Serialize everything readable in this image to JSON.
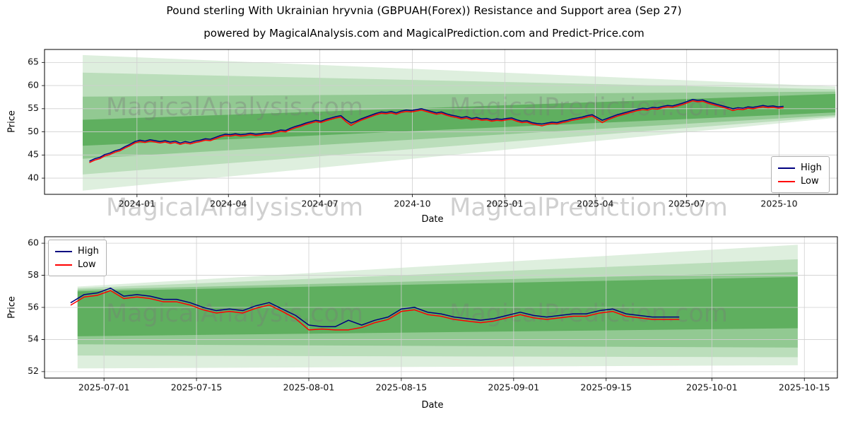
{
  "title": "Pound sterling With Ukrainian hryvnia (GBPUAH(Forex)) Resistance and Support area (Sep 27)",
  "subtitle": "powered by MagicalAnalysis.com and MagicalPrediction.com and Predict-Price.com",
  "watermark": {
    "left": "MagicalAnalysis.com",
    "right": "MagicalPrediction.com",
    "color": "rgba(120,120,120,0.35)"
  },
  "legend": {
    "high_label": "High",
    "low_label": "Low",
    "high_color": "#000080",
    "low_color": "#ff0000"
  },
  "colors": {
    "band_green": "#008000",
    "grid": "#cfcfcf",
    "axis": "#000000"
  },
  "chart_data": [
    {
      "type": "line",
      "title": "Pound sterling With Ukrainian hryvnia (GBPUAH(Forex)) Resistance and Support area (Sep 27)",
      "xlabel": "Date",
      "ylabel": "Price",
      "grid": true,
      "legend_position": "center right",
      "x_range": [
        "2023-10-01",
        "2025-11-28"
      ],
      "ylim": [
        36.5,
        67.8
      ],
      "y_ticks": [
        40,
        45,
        50,
        55,
        60,
        65
      ],
      "x_ticks": [
        {
          "v": "2024-01-01",
          "label": "2024-01"
        },
        {
          "v": "2024-04-01",
          "label": "2024-04"
        },
        {
          "v": "2024-07-01",
          "label": "2024-07"
        },
        {
          "v": "2024-10-01",
          "label": "2024-10"
        },
        {
          "v": "2025-01-01",
          "label": "2025-01"
        },
        {
          "v": "2025-04-01",
          "label": "2025-04"
        },
        {
          "v": "2025-07-01",
          "label": "2025-07"
        },
        {
          "v": "2025-10-01",
          "label": "2025-10"
        }
      ],
      "bands": [
        {
          "color": "#008000",
          "alpha": 0.13,
          "x0": "2023-11-08",
          "x1": "2025-11-26",
          "top0": 66.6,
          "bot0": 37.3,
          "top1": 59.8,
          "bot1": 53.0
        },
        {
          "color": "#008000",
          "alpha": 0.16,
          "x0": "2023-11-08",
          "x1": "2025-11-26",
          "top0": 62.8,
          "bot0": 40.8,
          "top1": 59.2,
          "bot1": 53.3
        },
        {
          "color": "#008000",
          "alpha": 0.22,
          "x0": "2023-11-08",
          "x1": "2025-11-26",
          "top0": 57.6,
          "bot0": 44.2,
          "top1": 58.7,
          "bot1": 53.6
        },
        {
          "color": "#008000",
          "alpha": 0.35,
          "x0": "2023-11-08",
          "x1": "2025-11-26",
          "top0": 52.6,
          "bot0": 47.0,
          "top1": 58.2,
          "bot1": 54.2
        }
      ],
      "x_start": "2023-11-15",
      "x_step_days": 5,
      "series": [
        {
          "name": "High",
          "color": "#000080",
          "values": [
            43.7,
            44.2,
            44.5,
            45.1,
            45.4,
            45.9,
            46.2,
            46.8,
            47.3,
            47.9,
            48.2,
            48.0,
            48.3,
            48.1,
            47.9,
            48.1,
            47.8,
            48.0,
            47.6,
            47.9,
            47.7,
            48.0,
            48.2,
            48.5,
            48.4,
            48.8,
            49.2,
            49.5,
            49.4,
            49.6,
            49.4,
            49.5,
            49.7,
            49.5,
            49.6,
            49.8,
            49.8,
            50.1,
            50.4,
            50.3,
            50.8,
            51.2,
            51.5,
            51.9,
            52.2,
            52.5,
            52.3,
            52.7,
            53.0,
            53.3,
            53.5,
            52.6,
            51.9,
            52.3,
            52.8,
            53.2,
            53.6,
            54.0,
            54.3,
            54.2,
            54.4,
            54.1,
            54.5,
            54.7,
            54.6,
            54.8,
            55.0,
            54.7,
            54.4,
            54.1,
            54.3,
            53.9,
            53.6,
            53.4,
            53.1,
            53.3,
            52.9,
            53.1,
            52.8,
            52.9,
            52.6,
            52.8,
            52.7,
            52.9,
            53.0,
            52.6,
            52.3,
            52.4,
            52.0,
            51.8,
            51.7,
            51.9,
            52.1,
            52.0,
            52.3,
            52.5,
            52.8,
            53.0,
            53.2,
            53.5,
            53.7,
            53.1,
            52.5,
            52.9,
            53.3,
            53.7,
            54.0,
            54.3,
            54.6,
            54.9,
            55.1,
            55.0,
            55.3,
            55.2,
            55.5,
            55.7,
            55.6,
            55.9,
            56.2,
            56.6,
            57.0,
            56.8,
            56.9,
            56.5,
            56.2,
            55.9,
            55.6,
            55.3,
            55.0,
            55.2,
            55.1,
            55.4,
            55.3,
            55.5,
            55.7,
            55.5,
            55.6,
            55.4,
            55.5
          ]
        },
        {
          "name": "Low",
          "color": "#ff0000",
          "values": [
            43.4,
            43.9,
            44.2,
            44.8,
            45.1,
            45.6,
            45.9,
            46.5,
            47.0,
            47.6,
            47.9,
            47.7,
            48.0,
            47.8,
            47.6,
            47.8,
            47.5,
            47.7,
            47.3,
            47.6,
            47.4,
            47.7,
            47.9,
            48.2,
            48.1,
            48.5,
            48.9,
            49.2,
            49.1,
            49.3,
            49.1,
            49.2,
            49.4,
            49.2,
            49.3,
            49.5,
            49.5,
            49.8,
            50.1,
            50.0,
            50.5,
            50.9,
            51.2,
            51.6,
            51.9,
            52.2,
            52.0,
            52.4,
            52.7,
            53.0,
            53.2,
            52.2,
            51.4,
            52.0,
            52.5,
            52.9,
            53.3,
            53.7,
            54.0,
            53.9,
            54.1,
            53.8,
            54.2,
            54.4,
            54.3,
            54.5,
            54.7,
            54.4,
            54.1,
            53.8,
            54.0,
            53.6,
            53.3,
            53.1,
            52.8,
            53.0,
            52.6,
            52.8,
            52.5,
            52.6,
            52.3,
            52.5,
            52.4,
            52.6,
            52.7,
            52.3,
            52.0,
            52.1,
            51.7,
            51.5,
            51.3,
            51.6,
            51.8,
            51.7,
            52.0,
            52.2,
            52.5,
            52.7,
            52.9,
            53.2,
            53.4,
            52.7,
            52.0,
            52.6,
            53.0,
            53.4,
            53.7,
            54.0,
            54.3,
            54.6,
            54.8,
            54.7,
            55.0,
            54.9,
            55.2,
            55.4,
            55.3,
            55.6,
            55.9,
            56.3,
            56.7,
            56.5,
            56.6,
            56.2,
            55.9,
            55.6,
            55.3,
            55.0,
            54.6,
            54.9,
            54.8,
            55.1,
            55.0,
            55.2,
            55.4,
            55.2,
            55.3,
            55.1,
            55.2
          ]
        }
      ]
    },
    {
      "type": "line",
      "xlabel": "Date",
      "ylabel": "Price",
      "grid": true,
      "legend_position": "upper left",
      "x_range": [
        "2025-06-22",
        "2025-10-20"
      ],
      "ylim": [
        51.6,
        60.4
      ],
      "y_ticks": [
        52,
        54,
        56,
        58,
        60
      ],
      "x_ticks": [
        {
          "v": "2025-07-01",
          "label": "2025-07-01"
        },
        {
          "v": "2025-07-15",
          "label": "2025-07-15"
        },
        {
          "v": "2025-08-01",
          "label": "2025-08-01"
        },
        {
          "v": "2025-08-15",
          "label": "2025-08-15"
        },
        {
          "v": "2025-09-01",
          "label": "2025-09-01"
        },
        {
          "v": "2025-09-15",
          "label": "2025-09-15"
        },
        {
          "v": "2025-10-01",
          "label": "2025-10-01"
        },
        {
          "v": "2025-10-15",
          "label": "2025-10-15"
        }
      ],
      "bands": [
        {
          "color": "#008000",
          "alpha": 0.13,
          "x0": "2025-06-27",
          "x1": "2025-10-14",
          "top0": 57.3,
          "bot0": 52.2,
          "top1": 59.9,
          "bot1": 52.4
        },
        {
          "color": "#008000",
          "alpha": 0.16,
          "x0": "2025-06-27",
          "x1": "2025-10-14",
          "top0": 57.2,
          "bot0": 53.0,
          "top1": 59.0,
          "bot1": 52.9
        },
        {
          "color": "#008000",
          "alpha": 0.22,
          "x0": "2025-06-27",
          "x1": "2025-10-14",
          "top0": 57.1,
          "bot0": 53.7,
          "top1": 58.2,
          "bot1": 53.5
        },
        {
          "color": "#008000",
          "alpha": 0.35,
          "x0": "2025-06-27",
          "x1": "2025-10-14",
          "top0": 57.0,
          "bot0": 54.2,
          "top1": 57.9,
          "bot1": 54.7
        }
      ],
      "x_start": "2025-06-26",
      "x_step_days": 2,
      "series": [
        {
          "name": "High",
          "color": "#000080",
          "values": [
            56.3,
            56.8,
            56.9,
            57.2,
            56.7,
            56.8,
            56.7,
            56.5,
            56.5,
            56.3,
            56.0,
            55.8,
            55.9,
            55.8,
            56.1,
            56.3,
            55.9,
            55.5,
            54.9,
            54.8,
            54.8,
            55.2,
            54.9,
            55.2,
            55.4,
            55.9,
            56.0,
            55.7,
            55.6,
            55.4,
            55.3,
            55.2,
            55.3,
            55.5,
            55.7,
            55.5,
            55.4,
            55.5,
            55.6,
            55.6,
            55.8,
            55.9,
            55.6,
            55.5,
            55.4,
            55.4,
            55.4
          ]
        },
        {
          "name": "Low",
          "color": "#ff0000",
          "values": [
            56.15,
            56.65,
            56.75,
            57.05,
            56.55,
            56.65,
            56.55,
            56.35,
            56.35,
            56.15,
            55.85,
            55.65,
            55.75,
            55.65,
            55.95,
            56.15,
            55.75,
            55.3,
            54.6,
            54.65,
            54.6,
            54.6,
            54.75,
            55.05,
            55.25,
            55.75,
            55.85,
            55.55,
            55.45,
            55.25,
            55.15,
            55.05,
            55.15,
            55.35,
            55.55,
            55.35,
            55.25,
            55.35,
            55.45,
            55.45,
            55.65,
            55.75,
            55.45,
            55.35,
            55.25,
            55.25,
            55.25
          ]
        }
      ]
    }
  ]
}
